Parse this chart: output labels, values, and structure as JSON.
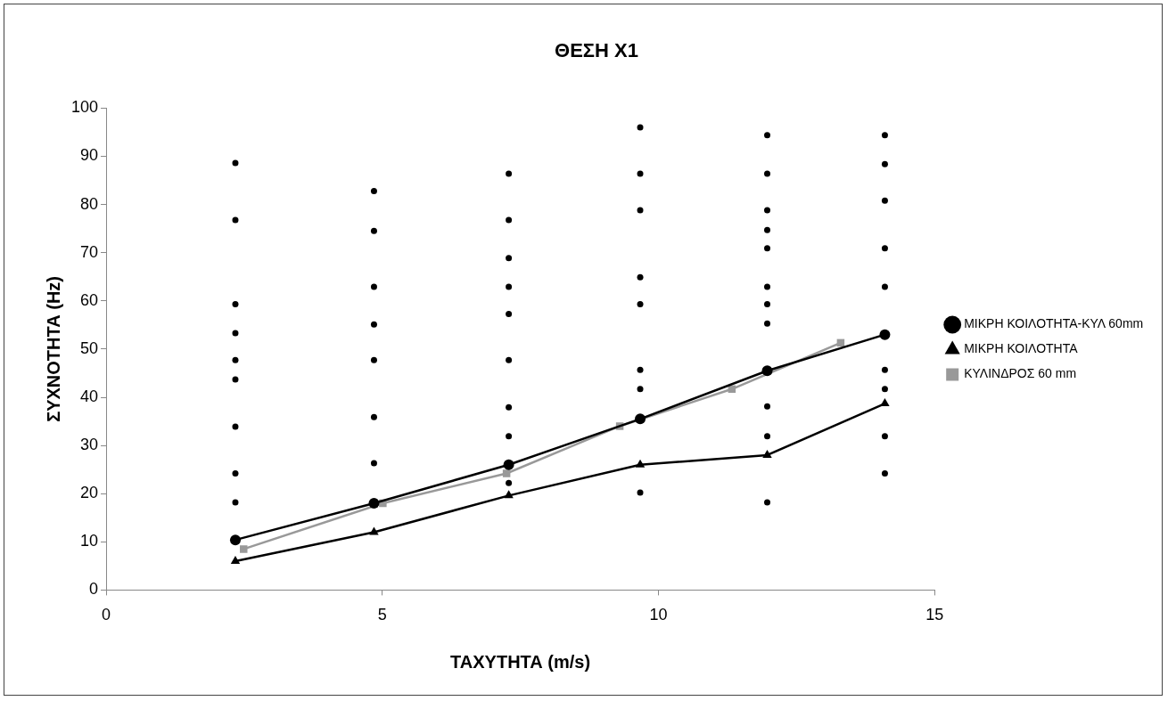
{
  "chart_data": {
    "type": "line",
    "title": "ΘΕΣΗ Χ1",
    "xlabel": "ΤΑΧΥΤΗΤΑ (m/s)",
    "ylabel": "ΣΥΧΝΟΤΗΤΑ (Hz)",
    "xlim": [
      0,
      15
    ],
    "xticks": [
      0,
      5,
      10,
      15
    ],
    "ylim": [
      0,
      100
    ],
    "yticks": [
      0,
      10,
      20,
      30,
      40,
      50,
      60,
      70,
      80,
      90,
      100
    ],
    "grid": false,
    "legend": "right",
    "line_style": "solid",
    "series": [
      {
        "name": "ΜΙΚΡΗ ΚΟΙΛΟΤΗΤΑ-ΚΥΛ 60mm",
        "color": "#000000",
        "marker": "circle",
        "x": [
          2.34,
          4.85,
          7.29,
          9.67,
          11.97,
          14.1
        ],
        "values": [
          10.4,
          18,
          26,
          35.5,
          45.5,
          53
        ]
      },
      {
        "name": "ΜΙΚΡΗ ΚΟΙΛΟΤΗΤΑ",
        "color": "#000000",
        "marker": "triangle",
        "x": [
          2.34,
          4.85,
          7.29,
          9.67,
          11.97,
          14.1
        ],
        "values": [
          6,
          12,
          19.6,
          26,
          28,
          38.7
        ]
      },
      {
        "name": "ΚΥΛΙΝΔΡΟΣ 60 mm",
        "color": "#999999",
        "marker": "square",
        "x": [
          2.49,
          5.01,
          7.25,
          9.3,
          11.33,
          13.3
        ],
        "values": [
          8.5,
          18,
          24.2,
          34,
          41.7,
          51.3
        ]
      },
      {
        "type": "scatter",
        "color": "#000000",
        "marker": "circle",
        "x": [
          2.34,
          2.34,
          2.34,
          2.34,
          2.34,
          2.34,
          2.34,
          2.34,
          2.34,
          4.85,
          4.85,
          4.85,
          4.85,
          4.85,
          4.85,
          4.85,
          7.29,
          7.29,
          7.29,
          7.29,
          7.29,
          7.29,
          7.29,
          7.29,
          7.29,
          9.67,
          9.67,
          9.67,
          9.67,
          9.67,
          9.67,
          9.67,
          9.67,
          11.97,
          11.97,
          11.97,
          11.97,
          11.97,
          11.97,
          11.97,
          11.97,
          11.97,
          11.97,
          11.97,
          14.1,
          14.1,
          14.1,
          14.1,
          14.1,
          14.1,
          14.1,
          14.1,
          14.1
        ],
        "values": [
          88.6,
          76.8,
          59.3,
          53.3,
          47.7,
          43.7,
          33.9,
          24.2,
          18.2,
          82.8,
          74.5,
          62.9,
          55.1,
          47.7,
          35.9,
          26.3,
          86.4,
          76.8,
          68.9,
          62.9,
          57.3,
          47.7,
          37.9,
          31.9,
          22.2,
          96,
          86.4,
          78.8,
          64.9,
          59.3,
          45.7,
          41.7,
          20.2,
          94.4,
          86.4,
          78.8,
          74.7,
          70.9,
          62.9,
          59.3,
          55.3,
          38.1,
          31.9,
          18.2,
          94.4,
          88.4,
          80.8,
          70.9,
          62.9,
          45.7,
          41.7,
          31.9,
          24.2
        ]
      }
    ]
  }
}
